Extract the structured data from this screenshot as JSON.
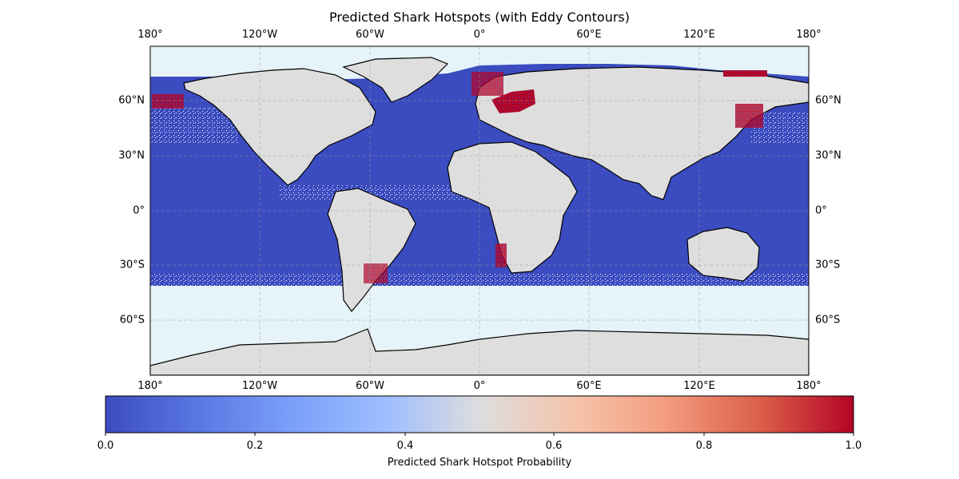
{
  "title": "Predicted Shark Hotspots (with Eddy Contours)",
  "lon_ticks": [
    "180°",
    "120°W",
    "60°W",
    "0°",
    "60°E",
    "120°E",
    "180°"
  ],
  "lat_ticks": [
    "60°N",
    "30°N",
    "0°",
    "30°S",
    "60°S"
  ],
  "colorbar": {
    "label": "Predicted Shark Hotspot Probability",
    "ticks": [
      "0.0",
      "0.2",
      "0.4",
      "0.6",
      "0.8",
      "1.0"
    ],
    "colormap": "coolwarm",
    "range": [
      0.0,
      1.0
    ]
  },
  "colors": {
    "ocean_background": "#e6f3f8",
    "land": "#dedede",
    "low_probability": "#3b4cc0",
    "high_probability": "#b40426"
  },
  "map": {
    "projection": "PlateCarree",
    "extent_lon": [
      -180,
      180
    ],
    "extent_lat": [
      -90,
      90
    ],
    "gridlines": true
  }
}
